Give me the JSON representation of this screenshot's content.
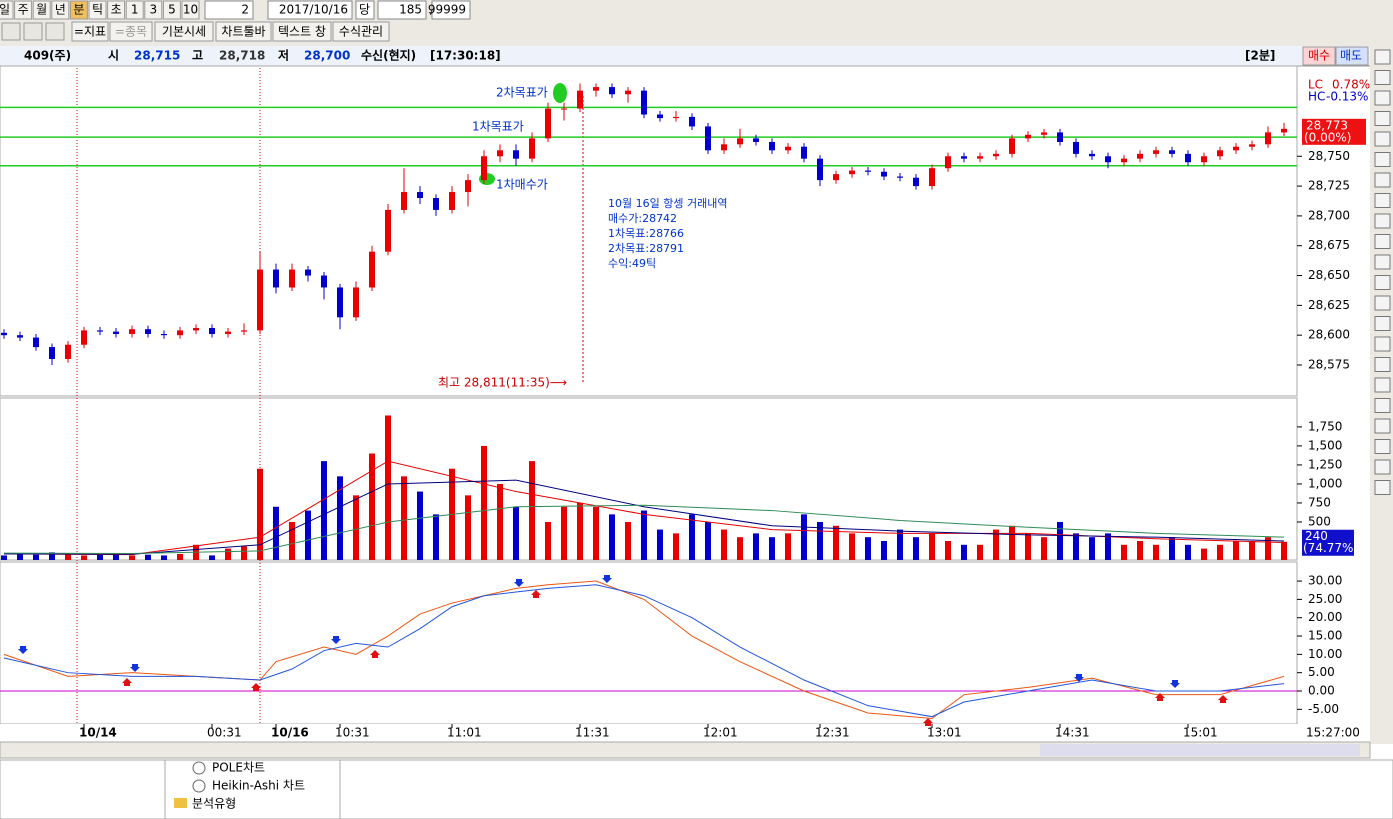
{
  "toolbar": {
    "period_buttons": [
      "일",
      "주",
      "월",
      "년",
      "분",
      "틱",
      "초",
      "1",
      "3",
      "5",
      "10"
    ],
    "interval": "2",
    "date": "2017/10/16",
    "dang": "당",
    "count": "185",
    "slash": "/",
    "max": "99999",
    "buttons": [
      "=지표",
      "=종목",
      "기본시세",
      "차트툴바",
      "텍스트 창",
      "수식관리"
    ]
  },
  "header": {
    "code": "409(주)",
    "open_label": "시",
    "open": "28,715",
    "high_label": "고",
    "high": "28,718",
    "low_label": "저",
    "low": "28,700",
    "status": "수신(현지)",
    "time": "[17:30:18]",
    "period": "[2분]",
    "buy": "매수",
    "sell": "매도"
  },
  "chart_data": [
    {
      "type": "candlestick",
      "categories": [
        null,
        null,
        null,
        null,
        null,
        "10/14",
        null,
        null,
        null,
        null,
        null,
        null,
        null,
        "00:31",
        null,
        null,
        null,
        "10/16",
        null,
        null,
        null,
        "10:31",
        null,
        null,
        null,
        null,
        null,
        null,
        "11:01",
        null,
        null,
        null,
        null,
        null,
        null,
        null,
        "11:31",
        null,
        null,
        null,
        null,
        null,
        null,
        null,
        "12:01",
        null,
        null,
        null,
        null,
        null,
        null,
        "12:31",
        null,
        null,
        null,
        null,
        null,
        null,
        "13:01",
        null,
        null,
        null,
        null,
        null,
        null,
        null,
        "14:31",
        null,
        null,
        null,
        null,
        null,
        null,
        null,
        "15:01",
        null,
        null,
        null,
        null,
        null,
        null
      ],
      "candles": [
        [
          28602,
          28605,
          28597,
          28600
        ],
        [
          28600,
          28603,
          28595,
          28598
        ],
        [
          28598,
          28601,
          28587,
          28590
        ],
        [
          28590,
          28593,
          28575,
          28580
        ],
        [
          28580,
          28595,
          28577,
          28592
        ],
        [
          28592,
          28607,
          28589,
          28604
        ],
        [
          28604,
          28607,
          28600,
          28603
        ],
        [
          28603,
          28606,
          28598,
          28601
        ],
        [
          28601,
          28608,
          28598,
          28605
        ],
        [
          28605,
          28608,
          28598,
          28601
        ],
        [
          28601,
          28604,
          28597,
          28600
        ],
        [
          28600,
          28607,
          28597,
          28604
        ],
        [
          28604,
          28609,
          28601,
          28606
        ],
        [
          28606,
          28609,
          28598,
          28601
        ],
        [
          28601,
          28606,
          28598,
          28603
        ],
        [
          28603,
          28610,
          28600,
          28604
        ],
        [
          28604,
          28670,
          28601,
          28655
        ],
        [
          28655,
          28660,
          28635,
          28640
        ],
        [
          28640,
          28660,
          28637,
          28655
        ],
        [
          28655,
          28658,
          28645,
          28650
        ],
        [
          28650,
          28653,
          28630,
          28640
        ],
        [
          28640,
          28643,
          28605,
          28615
        ],
        [
          28615,
          28645,
          28612,
          28640
        ],
        [
          28640,
          28675,
          28637,
          28670
        ],
        [
          28670,
          28710,
          28667,
          28705
        ],
        [
          28705,
          28740,
          28702,
          28720
        ],
        [
          28720,
          28725,
          28710,
          28715
        ],
        [
          28715,
          28718,
          28700,
          28705
        ],
        [
          28705,
          28725,
          28702,
          28720
        ],
        [
          28720,
          28735,
          28708,
          28730
        ],
        [
          28730,
          28755,
          28727,
          28750
        ],
        [
          28750,
          28760,
          28745,
          28755
        ],
        [
          28755,
          28760,
          28742,
          28748
        ],
        [
          28748,
          28770,
          28745,
          28765
        ],
        [
          28765,
          28795,
          28762,
          28790
        ],
        [
          28790,
          28795,
          28780,
          28790
        ],
        [
          28790,
          28811,
          28787,
          28805
        ],
        [
          28805,
          28811,
          28800,
          28808
        ],
        [
          28808,
          28811,
          28799,
          28802
        ],
        [
          28802,
          28808,
          28795,
          28805
        ],
        [
          28805,
          28808,
          28782,
          28785
        ],
        [
          28785,
          28788,
          28779,
          28782
        ],
        [
          28782,
          28788,
          28779,
          28783
        ],
        [
          28783,
          28786,
          28772,
          28775
        ],
        [
          28775,
          28778,
          28752,
          28755
        ],
        [
          28755,
          28765,
          28752,
          28760
        ],
        [
          28760,
          28773,
          28757,
          28765
        ],
        [
          28765,
          28768,
          28759,
          28762
        ],
        [
          28762,
          28765,
          28752,
          28755
        ],
        [
          28755,
          28761,
          28752,
          28758
        ],
        [
          28758,
          28761,
          28745,
          28748
        ],
        [
          28748,
          28751,
          28725,
          28730
        ],
        [
          28730,
          28738,
          28727,
          28735
        ],
        [
          28735,
          28741,
          28732,
          28738
        ],
        [
          28738,
          28741,
          28734,
          28737
        ],
        [
          28737,
          28740,
          28730,
          28733
        ],
        [
          28733,
          28736,
          28729,
          28732
        ],
        [
          28732,
          28735,
          28722,
          28725
        ],
        [
          28725,
          28743,
          28722,
          28740
        ],
        [
          28740,
          28753,
          28737,
          28750
        ],
        [
          28750,
          28753,
          28745,
          28748
        ],
        [
          28748,
          28753,
          28745,
          28750
        ],
        [
          28750,
          28755,
          28747,
          28752
        ],
        [
          28752,
          28768,
          28749,
          28765
        ],
        [
          28765,
          28771,
          28762,
          28768
        ],
        [
          28768,
          28773,
          28765,
          28770
        ],
        [
          28770,
          28773,
          28759,
          28762
        ],
        [
          28762,
          28765,
          28749,
          28752
        ],
        [
          28752,
          28755,
          28747,
          28750
        ],
        [
          28750,
          28753,
          28740,
          28745
        ],
        [
          28745,
          28751,
          28742,
          28748
        ],
        [
          28748,
          28755,
          28745,
          28752
        ],
        [
          28752,
          28758,
          28749,
          28755
        ],
        [
          28755,
          28758,
          28749,
          28752
        ],
        [
          28752,
          28755,
          28742,
          28745
        ],
        [
          28745,
          28753,
          28742,
          28750
        ],
        [
          28750,
          28758,
          28747,
          28755
        ],
        [
          28755,
          28761,
          28752,
          28758
        ],
        [
          28758,
          28763,
          28755,
          28760
        ],
        [
          28760,
          28775,
          28757,
          28770
        ],
        [
          28770,
          28778,
          28767,
          28773
        ]
      ],
      "up_color": "#e60000",
      "down_color": "#0000cc",
      "ylim": [
        28549,
        28824
      ],
      "yticks": [
        {
          "value": 28575,
          "label": "28,575"
        },
        {
          "value": 28600,
          "label": "28,600"
        },
        {
          "value": 28625,
          "label": "28,625"
        },
        {
          "value": 28650,
          "label": "28,650"
        },
        {
          "value": 28675,
          "label": "28,675"
        },
        {
          "value": 28700,
          "label": "28,700"
        },
        {
          "value": 28725,
          "label": "28,725"
        },
        {
          "value": 28750,
          "label": "28,750"
        }
      ],
      "hlines": [
        28742,
        28766,
        28791
      ],
      "hline_color": "#22cc22",
      "annotations": [
        "2차목표가",
        "1차목표가",
        "1차매수가"
      ],
      "note": [
        "10월 16일 항셍 거래내역",
        "매수가:28742",
        "1차목표:28766",
        "2차목표:28791",
        "수익:49틱"
      ],
      "max_label": "최고 28,811(11:35)⟶",
      "lc_label": "LC",
      "lc": "0.78%",
      "hc_label": "HC",
      "hc": "-0.13%",
      "last_price": {
        "value": 28773,
        "label": "28,773"
      },
      "last_change": "(0.00%)"
    },
    {
      "type": "bar",
      "values": [
        60,
        80,
        70,
        100,
        90,
        60,
        70,
        80,
        60,
        70,
        60,
        80,
        200,
        60,
        150,
        180,
        1200,
        700,
        500,
        650,
        1300,
        1100,
        850,
        1400,
        1900,
        1100,
        900,
        600,
        1200,
        850,
        1500,
        1000,
        700,
        1300,
        500,
        700,
        750,
        700,
        600,
        500,
        650,
        400,
        350,
        600,
        500,
        400,
        300,
        350,
        300,
        350,
        600,
        500,
        450,
        350,
        300,
        250,
        400,
        300,
        350,
        250,
        200,
        200,
        400,
        450,
        350,
        300,
        500,
        350,
        300,
        350,
        200,
        250,
        200,
        300,
        200,
        150,
        200,
        250,
        250,
        300,
        240
      ],
      "ylim": [
        0,
        2130
      ],
      "yticks": [
        500,
        750,
        {
          "value": 1000,
          "label": "1,000"
        },
        {
          "value": 1250,
          "label": "1,250"
        },
        {
          "value": 1500,
          "label": "1,500"
        },
        {
          "value": 1750,
          "label": "1,750"
        }
      ],
      "series": [
        {
          "color": "#e60000",
          "x": [
            0,
            8,
            16,
            24,
            32,
            40,
            48,
            56,
            64,
            72,
            80
          ],
          "values": [
            80,
            70,
            300,
            1300,
            900,
            600,
            400,
            350,
            350,
            280,
            230
          ]
        },
        {
          "color": "#000080",
          "x": [
            0,
            8,
            16,
            24,
            32,
            40,
            48,
            56,
            64,
            72,
            80
          ],
          "values": [
            80,
            75,
            200,
            1000,
            1050,
            700,
            450,
            380,
            330,
            300,
            250
          ]
        },
        {
          "color": "#2e8b57",
          "x": [
            0,
            8,
            16,
            24,
            32,
            40,
            48,
            56,
            64,
            72,
            80
          ],
          "values": [
            90,
            85,
            120,
            500,
            700,
            720,
            650,
            520,
            430,
            350,
            300
          ]
        }
      ],
      "last_value": 240,
      "last_ratio": "(74.77%)"
    },
    {
      "type": "line",
      "ylim": [
        -9,
        35.2
      ],
      "yticks": [
        {
          "value": 30,
          "label": "30.00"
        },
        {
          "value": 25,
          "label": "25.00"
        },
        {
          "value": 20,
          "label": "20.00"
        },
        {
          "value": 15,
          "label": "15.00"
        },
        {
          "value": 10,
          "label": "10.00"
        },
        {
          "value": 5,
          "label": "5.00"
        },
        {
          "value": 0,
          "label": "0.00"
        },
        {
          "value": -5,
          "label": "-5.00"
        }
      ],
      "baseline": 0,
      "baseline_color": "#cc00cc",
      "series": [
        {
          "color": "#ee5511",
          "x": [
            0,
            4,
            8,
            12,
            16,
            17,
            20,
            22,
            24,
            26,
            28,
            30,
            32,
            34,
            37,
            40,
            43,
            46,
            50,
            54,
            58,
            60,
            64,
            68,
            72,
            76,
            80
          ],
          "values": [
            10,
            4,
            5,
            4,
            3,
            8,
            12,
            10,
            15,
            21,
            24,
            26,
            28,
            29,
            30,
            25,
            15,
            8,
            0,
            -6,
            -7.5,
            -1,
            1,
            3.5,
            -1,
            -1,
            4
          ]
        },
        {
          "color": "#2255dd",
          "x": [
            0,
            4,
            8,
            12,
            16,
            18,
            20,
            22,
            24,
            26,
            28,
            30,
            32,
            34,
            37,
            40,
            43,
            46,
            50,
            54,
            58,
            60,
            64,
            68,
            72,
            76,
            80
          ],
          "values": [
            9,
            5,
            4,
            4,
            3,
            6,
            11,
            13,
            12,
            17,
            23,
            26,
            27,
            28,
            29,
            26,
            20,
            12,
            3,
            -4,
            -7,
            -3,
            0,
            3,
            0,
            0,
            2
          ]
        }
      ],
      "time_label": "15:27:00"
    }
  ],
  "side_panel": {
    "items": [
      "POLE차트",
      "Heikin-Ashi 차트",
      "분석유형"
    ]
  }
}
